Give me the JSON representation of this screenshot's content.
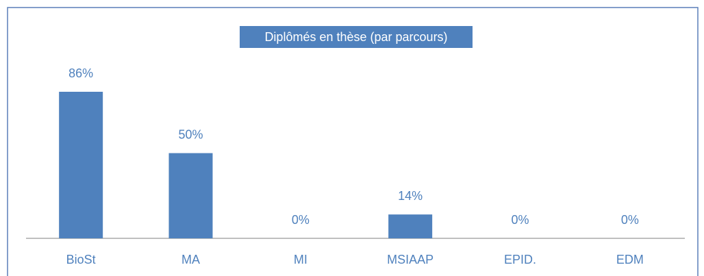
{
  "chart_data": {
    "type": "bar",
    "title": "Diplômés en thèse (par parcours)",
    "categories": [
      "BioSt",
      "MA",
      "MI",
      "MSIAAP",
      "EPID.",
      "EDM"
    ],
    "values": [
      86,
      50,
      0,
      14,
      0,
      0
    ],
    "value_labels": [
      "86%",
      "50%",
      "0%",
      "14%",
      "0%",
      "0%"
    ],
    "color": "#4f81bd"
  }
}
